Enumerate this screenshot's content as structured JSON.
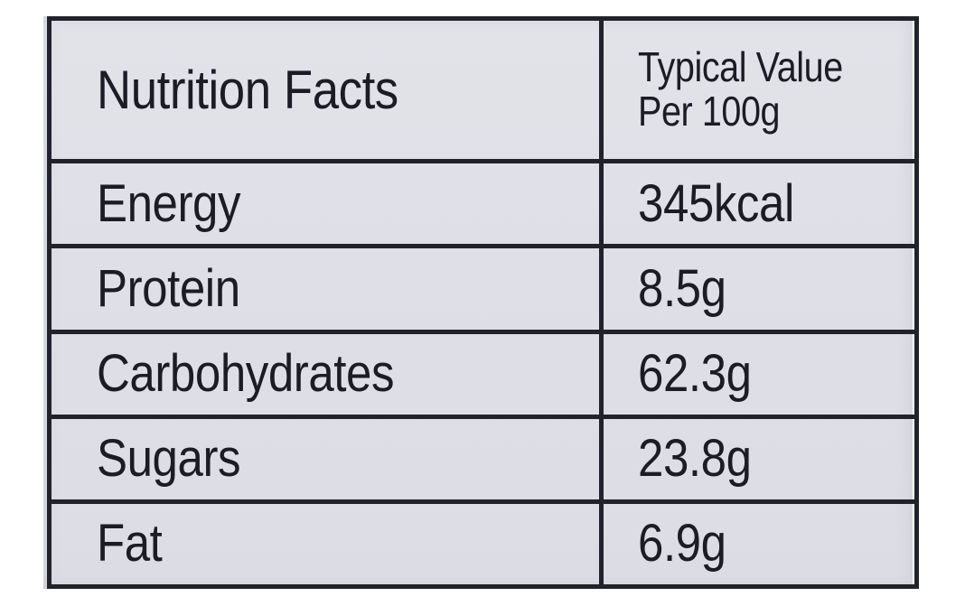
{
  "table": {
    "header_label": "Nutrition Facts",
    "value_header_line1": "Typical Value",
    "value_header_line2": "Per 100g",
    "rows": [
      {
        "nutrient": "Energy",
        "value": "345kcal"
      },
      {
        "nutrient": "Protein",
        "value": "8.5g"
      },
      {
        "nutrient": "Carbohydrates",
        "value": "62.3g"
      },
      {
        "nutrient": "Sugars",
        "value": "23.8g"
      },
      {
        "nutrient": "Fat",
        "value": "6.9g"
      }
    ]
  },
  "colors": {
    "label_background": "#dfe0e7",
    "border": "#22222c",
    "text": "#1c1c24"
  }
}
